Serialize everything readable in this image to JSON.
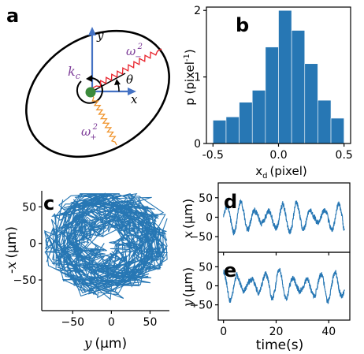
{
  "panels": {
    "a": {
      "letter": "a",
      "labels": {
        "y": "y",
        "x": "x",
        "theta": "θ",
        "kc": "k",
        "kc_sub": "c",
        "om_minus": "ω",
        "om_minus_sup": "2",
        "om_minus_sub": "−",
        "om_plus": "ω",
        "om_plus_sup": "2",
        "om_plus_sub": "+"
      },
      "colors": {
        "axes": "#4472c4",
        "spring_minus": "#e8212a",
        "spring_plus": "#f0932b",
        "bead": "#3c8a3c",
        "label": "#7d3c98"
      }
    },
    "b": {
      "letter": "b"
    },
    "c": {
      "letter": "c"
    },
    "d": {
      "letter": "d"
    },
    "e": {
      "letter": "e"
    }
  },
  "chart_data": [
    {
      "id": "b",
      "type": "bar",
      "xlabel": "x_d (pixel)",
      "xlabel_main": "x",
      "xlabel_sub": "d",
      "xlabel_unit": "(pixel)",
      "ylabel": "p (pixel⁻¹)",
      "ylabel_main": "p (pixel",
      "ylabel_sup": "-1",
      "ylabel_end": ")",
      "bin_edges": [
        -0.5,
        -0.4,
        -0.3,
        -0.2,
        -0.1,
        0.0,
        0.1,
        0.2,
        0.3,
        0.4,
        0.5
      ],
      "values": [
        0.35,
        0.4,
        0.62,
        0.8,
        1.45,
        2.0,
        1.7,
        1.2,
        0.65,
        0.38
      ],
      "xlim": [
        -0.55,
        0.55
      ],
      "ylim": [
        0,
        2.05
      ],
      "xticks": [
        -0.5,
        0.0,
        0.5
      ],
      "xticklabels": [
        "-0.5",
        "0.0",
        "0.5"
      ],
      "yticks": [
        0,
        1,
        2
      ],
      "yticklabels": [
        "0",
        "1",
        "2"
      ],
      "color": "#2777b4"
    },
    {
      "id": "c",
      "type": "line",
      "xlabel": "y (μm)",
      "xlabel_var": "y",
      "xlabel_unit": "(μm)",
      "ylabel": "-x (μm)",
      "ylabel_var": "-x",
      "ylabel_unit": "(μm)",
      "xlim": [
        -90,
        75
      ],
      "ylim": [
        -92,
        72
      ],
      "xticks": [
        -50,
        0,
        50
      ],
      "xticklabels": [
        "−50",
        "0",
        "50"
      ],
      "yticks": [
        50,
        0,
        -50
      ],
      "yticklabels": [
        "50",
        "0",
        "−50"
      ],
      "color": "#2777b4",
      "seed": 7,
      "n_points": 900
    },
    {
      "id": "d",
      "type": "line",
      "ylabel": "x (μm)",
      "ylabel_var": "x",
      "ylabel_unit": "(μm)",
      "xlim": [
        -2,
        48
      ],
      "ylim": [
        -90,
        88
      ],
      "yticks": [
        50,
        0,
        -50
      ],
      "yticklabels": [
        "50",
        "0",
        "−50"
      ],
      "xticks": [
        0,
        20,
        40
      ],
      "color": "#2777b4",
      "period_s": 5.3,
      "amplitude": 35,
      "noise": 14,
      "phase": 0.0,
      "seed": 3
    },
    {
      "id": "e",
      "type": "line",
      "xlabel": "time(s)",
      "ylabel": "y (μm)",
      "ylabel_var": "y",
      "ylabel_unit": "(μm)",
      "xlim": [
        -2,
        48
      ],
      "ylim": [
        -90,
        88
      ],
      "yticks": [
        50,
        0,
        -50
      ],
      "yticklabels": [
        "50",
        "0",
        "−50"
      ],
      "xticks": [
        0,
        20,
        40
      ],
      "xticklabels": [
        "0",
        "20",
        "40"
      ],
      "color": "#2777b4",
      "period_s": 5.3,
      "amplitude": 35,
      "noise": 14,
      "phase": 1.57,
      "seed": 11
    }
  ]
}
